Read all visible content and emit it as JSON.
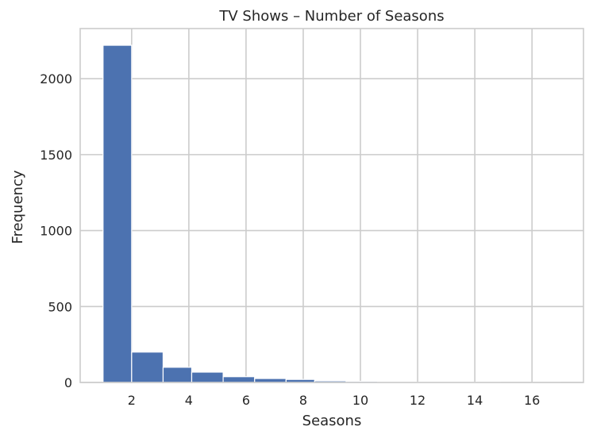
{
  "chart_data": {
    "type": "bar",
    "subtype": "histogram",
    "title": "TV Shows – Number of Seasons",
    "xlabel": "Seasons",
    "ylabel": "Frequency",
    "xlim": [
      0.2,
      17.8
    ],
    "ylim": [
      0,
      2330
    ],
    "xticks": [
      2,
      4,
      6,
      8,
      10,
      12,
      14,
      16
    ],
    "yticks": [
      0,
      500,
      1000,
      1500,
      2000
    ],
    "grid": true,
    "bar_color": "#4c72b0",
    "bins": [
      {
        "x0": 1.0,
        "x1": 2.0,
        "count": 2220
      },
      {
        "x0": 2.0,
        "x1": 3.1,
        "count": 200
      },
      {
        "x0": 3.1,
        "x1": 4.1,
        "count": 100
      },
      {
        "x0": 4.1,
        "x1": 5.2,
        "count": 68
      },
      {
        "x0": 5.2,
        "x1": 6.3,
        "count": 38
      },
      {
        "x0": 6.3,
        "x1": 7.4,
        "count": 26
      },
      {
        "x0": 7.4,
        "x1": 8.4,
        "count": 20
      },
      {
        "x0": 8.4,
        "x1": 9.5,
        "count": 10
      },
      {
        "x0": 9.5,
        "x1": 10.6,
        "count": 7
      },
      {
        "x0": 10.6,
        "x1": 11.6,
        "count": 2
      },
      {
        "x0": 11.6,
        "x1": 12.7,
        "count": 2
      },
      {
        "x0": 12.7,
        "x1": 13.8,
        "count": 2
      },
      {
        "x0": 13.8,
        "x1": 14.9,
        "count": 2
      },
      {
        "x0": 14.9,
        "x1": 15.9,
        "count": 1
      },
      {
        "x0": 15.9,
        "x1": 17.0,
        "count": 1
      }
    ]
  }
}
